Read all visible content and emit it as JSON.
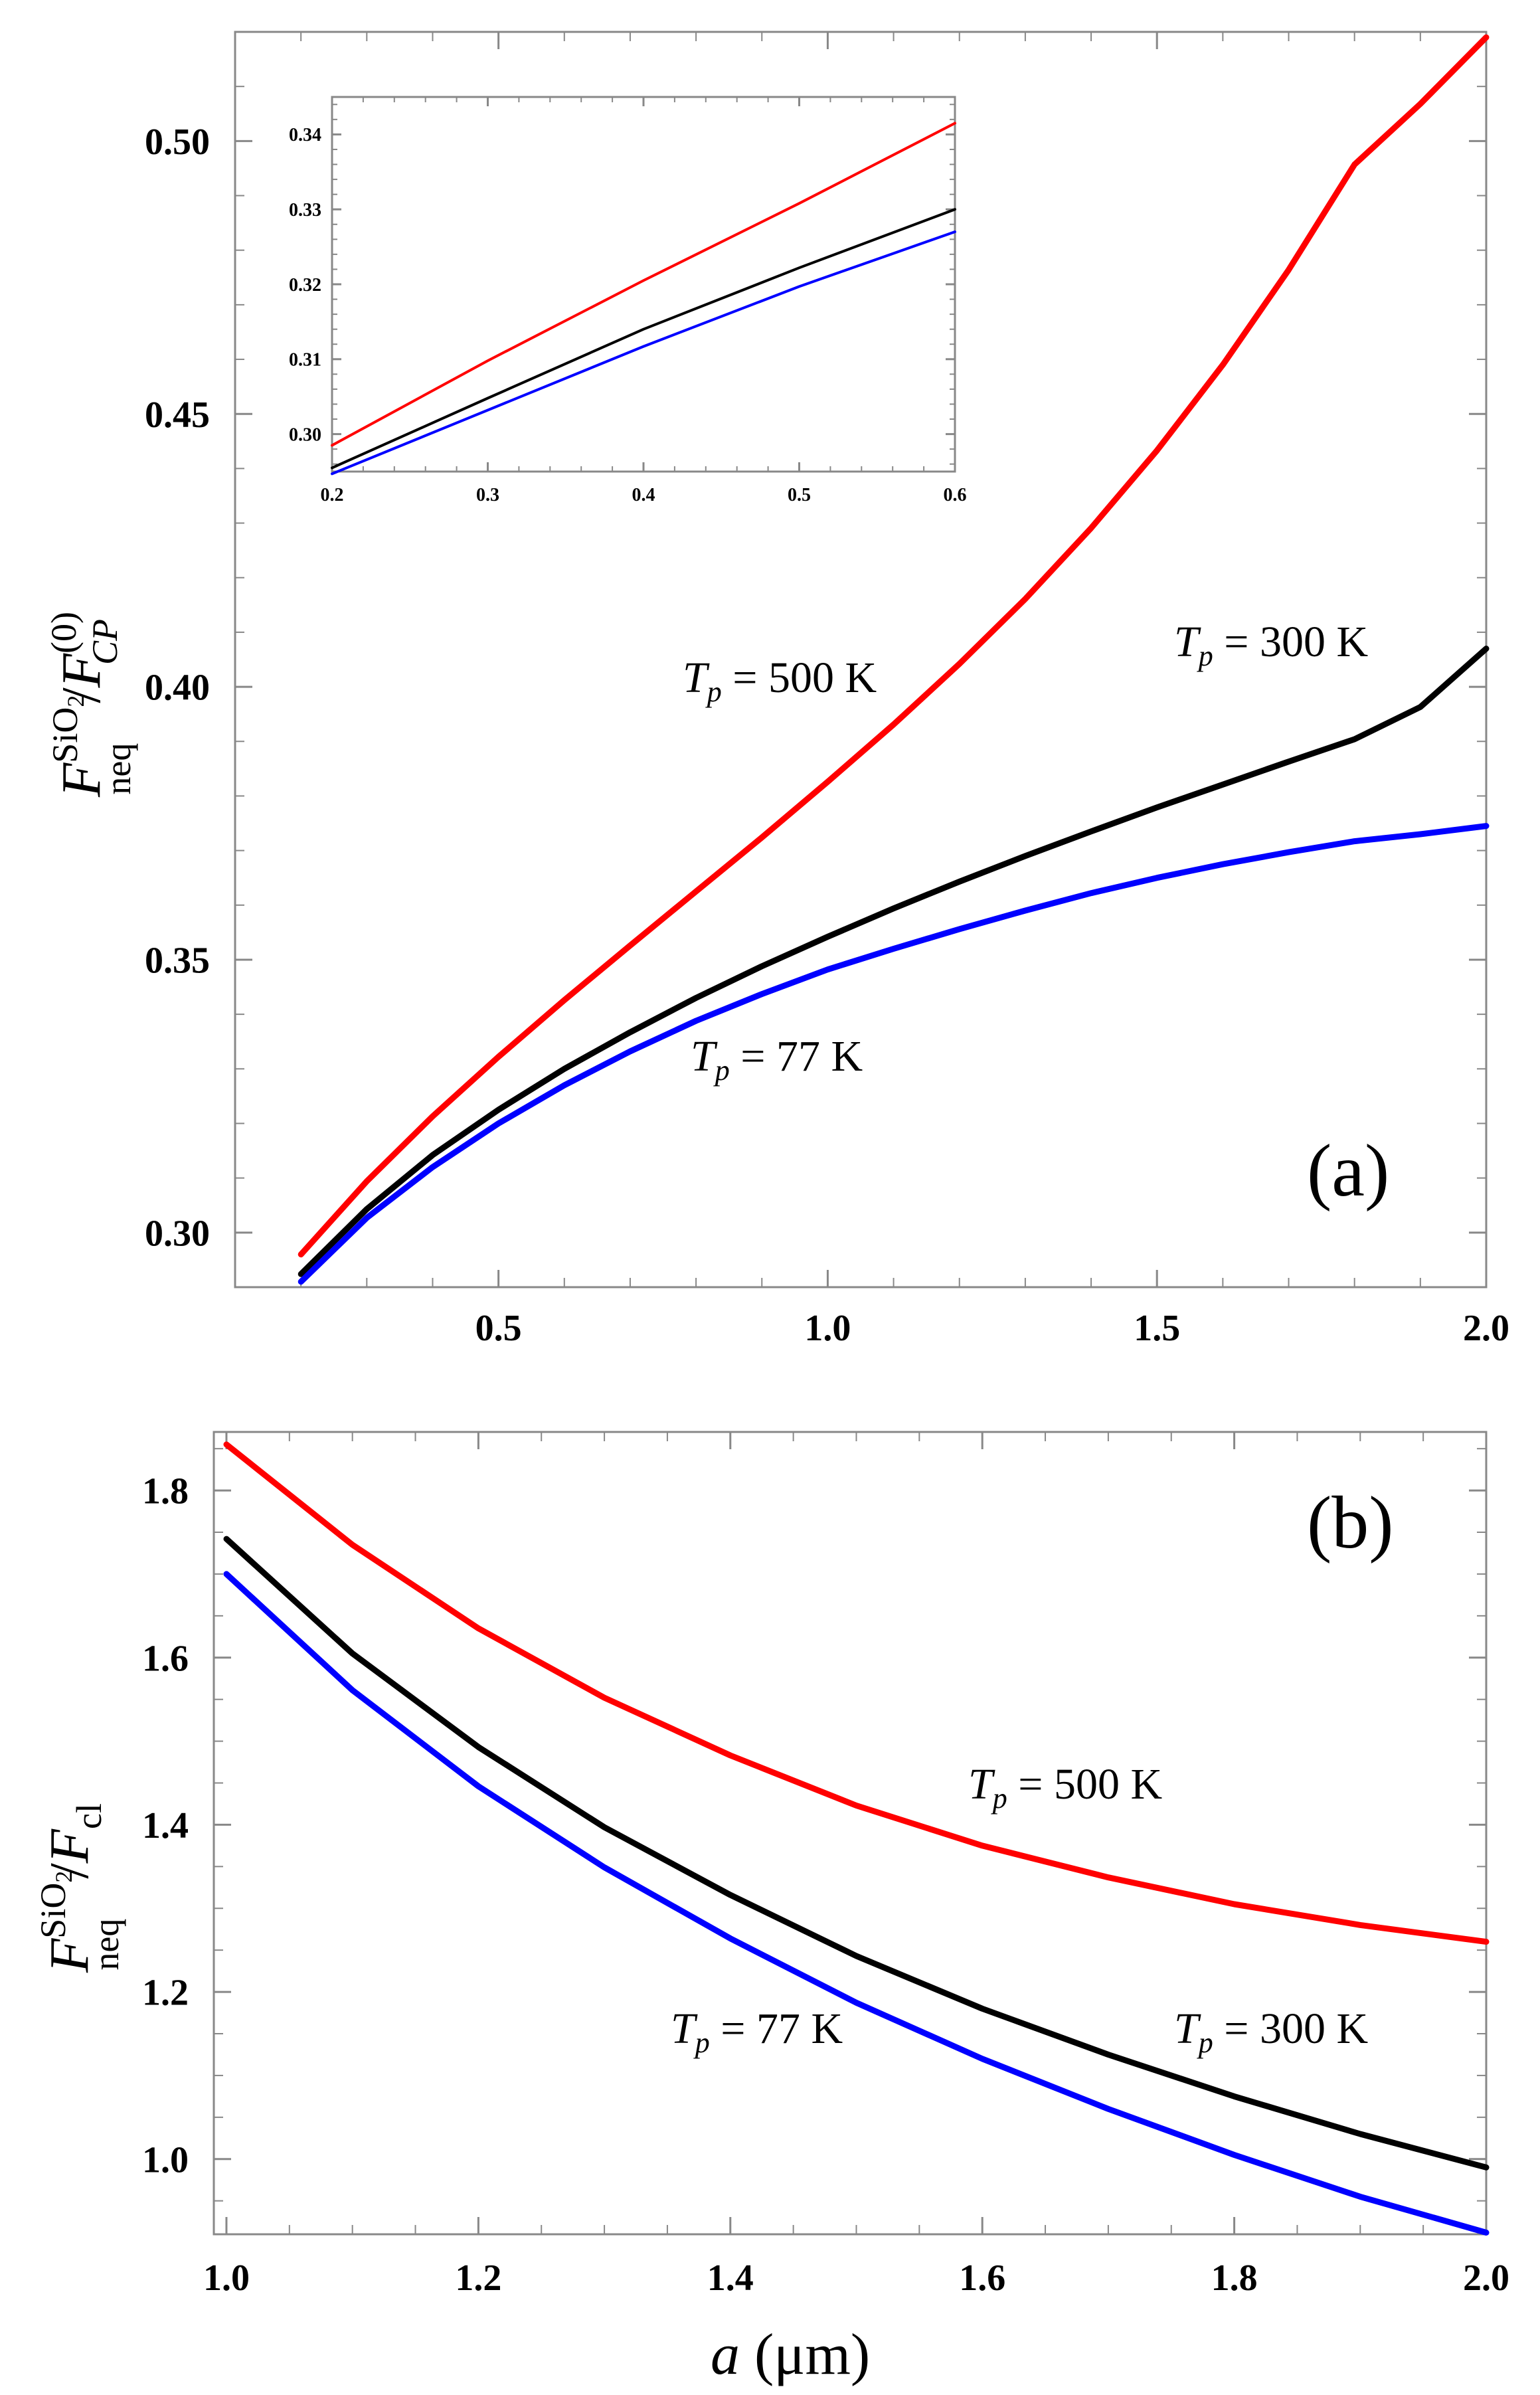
{
  "chart_data": [
    {
      "panel": "(a)",
      "type": "line",
      "ylabel": {
        "main": "F",
        "sup": "SiO",
        "sup_sub": "2",
        "sub": "neq",
        "sep": "/",
        "den": "F",
        "den_sup": "(0)",
        "den_sub": "CP"
      },
      "xlabel": "",
      "xlim": [
        0.1,
        2.0
      ],
      "ylim": [
        0.29,
        0.52
      ],
      "xticks": [
        0.5,
        1.0,
        1.5,
        2.0
      ],
      "xtick_labels": [
        "0.5",
        "1.0",
        "1.5",
        "2.0"
      ],
      "yticks": [
        0.3,
        0.35,
        0.4,
        0.45,
        0.5
      ],
      "ytick_labels": [
        "0.30",
        "0.35",
        "0.40",
        "0.45",
        "0.50"
      ],
      "x": [
        0.2,
        0.3,
        0.4,
        0.5,
        0.6,
        0.7,
        0.8,
        0.9,
        1.0,
        1.1,
        1.2,
        1.3,
        1.4,
        1.5,
        1.6,
        1.7,
        1.8,
        1.9,
        2.0
      ],
      "series": [
        {
          "name": "T_p = 500 K",
          "color": "#ff0000",
          "values": [
            0.296,
            0.3094,
            0.3213,
            0.3322,
            0.3426,
            0.3526,
            0.3625,
            0.3724,
            0.3826,
            0.3931,
            0.4042,
            0.4161,
            0.4291,
            0.4433,
            0.459,
            0.4764,
            0.4957,
            0.5068,
            0.519
          ]
        },
        {
          "name": "T_p = 300 K",
          "color": "#000000",
          "values": [
            0.2924,
            0.3043,
            0.3142,
            0.3225,
            0.33,
            0.3367,
            0.343,
            0.3488,
            0.3542,
            0.3594,
            0.3643,
            0.369,
            0.3735,
            0.3779,
            0.3821,
            0.3863,
            0.3904,
            0.3963,
            0.407
          ]
        },
        {
          "name": "T_p = 77 K",
          "color": "#0000ff",
          "values": [
            0.291,
            0.3027,
            0.312,
            0.32,
            0.327,
            0.3332,
            0.3388,
            0.3437,
            0.3482,
            0.352,
            0.3556,
            0.359,
            0.3622,
            0.365,
            0.3675,
            0.3697,
            0.3717,
            0.373,
            0.3745
          ]
        }
      ],
      "annotations": [
        {
          "sym": "T",
          "sub": "p",
          "text": " = 500 K"
        },
        {
          "sym": "T",
          "sub": "p",
          "text": " = 300 K"
        },
        {
          "sym": "T",
          "sub": "p",
          "text": " = 77 K"
        }
      ],
      "inset": {
        "type": "line",
        "xlim": [
          0.2,
          0.6
        ],
        "ylim": [
          0.295,
          0.345
        ],
        "xticks": [
          0.2,
          0.3,
          0.4,
          0.5,
          0.6
        ],
        "xtick_labels": [
          "0.2",
          "0.3",
          "0.4",
          "0.5",
          "0.6"
        ],
        "yticks": [
          0.3,
          0.31,
          0.32,
          0.33,
          0.34
        ],
        "ytick_labels": [
          "0.30",
          "0.31",
          "0.32",
          "0.33",
          "0.34"
        ],
        "x": [
          0.2,
          0.3,
          0.4,
          0.5,
          0.6
        ],
        "series": [
          {
            "name": "T_p = 500 K",
            "color": "#ff0000",
            "values": [
              0.2985,
              0.3098,
              0.3205,
              0.3308,
              0.3415
            ]
          },
          {
            "name": "T_p = 300 K",
            "color": "#000000",
            "values": [
              0.2955,
              0.3048,
              0.314,
              0.3222,
              0.33
            ]
          },
          {
            "name": "T_p = 77 K",
            "color": "#0000ff",
            "values": [
              0.2947,
              0.3032,
              0.3117,
              0.3197,
              0.327
            ]
          }
        ]
      }
    },
    {
      "panel": "(b)",
      "type": "line",
      "ylabel": {
        "main": "F",
        "sup": "SiO",
        "sup_sub": "2",
        "sub": "neq",
        "sep": "/",
        "den": "F",
        "den_sub": "cl"
      },
      "xlabel": {
        "var": "a",
        "unit": "(μm)"
      },
      "xlim": [
        0.99,
        2.0
      ],
      "ylim": [
        0.91,
        1.87
      ],
      "xticks": [
        1.0,
        1.2,
        1.4,
        1.6,
        1.8,
        2.0
      ],
      "xtick_labels": [
        "1.0",
        "1.2",
        "1.4",
        "1.6",
        "1.8",
        "2.0"
      ],
      "yticks": [
        1.0,
        1.2,
        1.4,
        1.6,
        1.8
      ],
      "ytick_labels": [
        "1.0",
        "1.2",
        "1.4",
        "1.6",
        "1.8"
      ],
      "x": [
        1.0,
        1.1,
        1.2,
        1.3,
        1.4,
        1.5,
        1.6,
        1.7,
        1.8,
        1.9,
        2.0
      ],
      "series": [
        {
          "name": "T_p = 500 K",
          "color": "#ff0000",
          "values": [
            1.855,
            1.735,
            1.635,
            1.552,
            1.483,
            1.423,
            1.375,
            1.337,
            1.305,
            1.28,
            1.26
          ]
        },
        {
          "name": "T_p = 300 K",
          "color": "#000000",
          "values": [
            1.742,
            1.605,
            1.493,
            1.397,
            1.316,
            1.243,
            1.18,
            1.125,
            1.075,
            1.03,
            0.99
          ]
        },
        {
          "name": "T_p = 77 K",
          "color": "#0000ff",
          "values": [
            1.7,
            1.561,
            1.446,
            1.349,
            1.264,
            1.187,
            1.12,
            1.06,
            1.005,
            0.955,
            0.912
          ]
        }
      ],
      "annotations": [
        {
          "sym": "T",
          "sub": "p",
          "text": " = 500 K"
        },
        {
          "sym": "T",
          "sub": "p",
          "text": " = 77 K"
        },
        {
          "sym": "T",
          "sub": "p",
          "text": " = 300 K"
        }
      ]
    }
  ]
}
